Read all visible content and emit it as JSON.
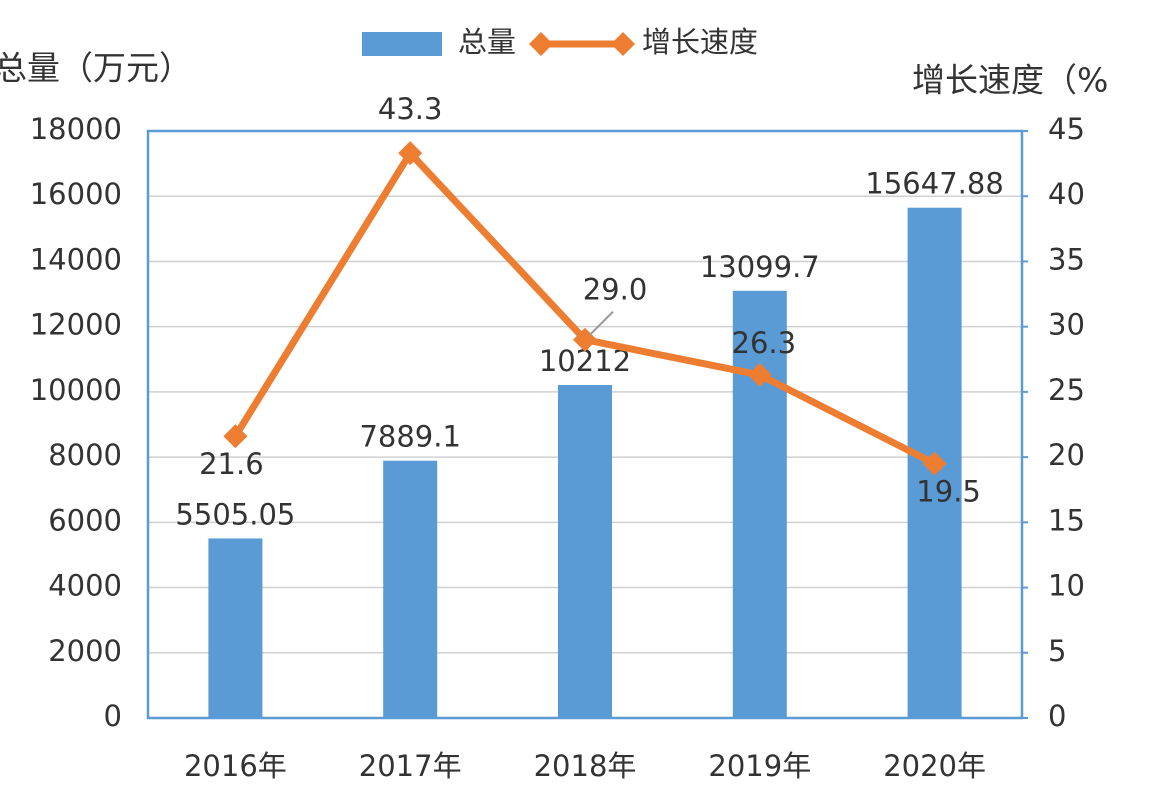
{
  "chart_data": {
    "type": "bar-line",
    "categories": [
      "2016年",
      "2017年",
      "2018年",
      "2019年",
      "2020年"
    ],
    "series": [
      {
        "name": "总量",
        "type": "bar",
        "color": "#5b9bd5",
        "values": [
          5505.05,
          7889.1,
          10212,
          13099.7,
          15647.88
        ]
      },
      {
        "name": "增长速度",
        "type": "line",
        "axis": "y2",
        "color": "#ed7d31",
        "values": [
          21.6,
          43.3,
          29.0,
          26.3,
          19.5
        ],
        "value_labels": [
          "21.6",
          "43.3",
          "29.0",
          "26.3",
          "19.5"
        ]
      }
    ],
    "ylabel": "总量（万元）",
    "y2label": "增长速度（%",
    "ylim": [
      0,
      18000
    ],
    "yticks": [
      0,
      2000,
      4000,
      6000,
      8000,
      10000,
      12000,
      14000,
      16000,
      18000
    ],
    "y2lim": [
      0,
      45
    ],
    "y2ticks": [
      0,
      5,
      10,
      15,
      20,
      25,
      30,
      35,
      40,
      45
    ],
    "grid": true,
    "legend": "top"
  }
}
